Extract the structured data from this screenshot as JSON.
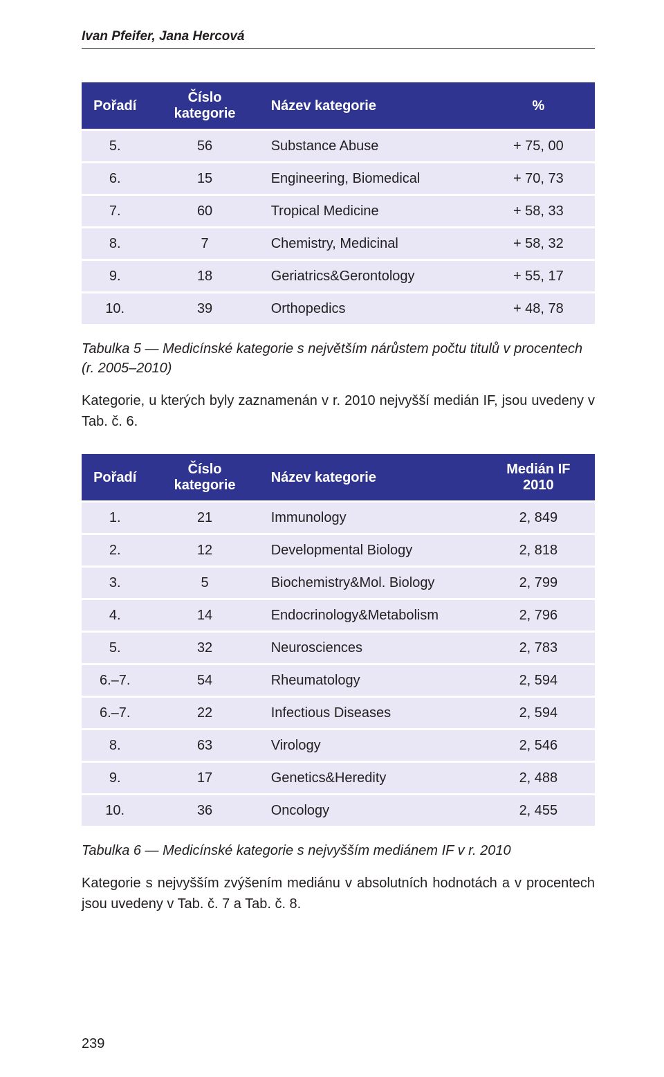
{
  "running_head": "Ivan Pfeifer, Jana Hercová",
  "page_number": "239",
  "table1": {
    "columns": [
      "Pořadí",
      "Číslo kategorie",
      "Název kategorie",
      "%"
    ],
    "rows": [
      [
        "5.",
        "56",
        "Substance Abuse",
        "+ 75, 00"
      ],
      [
        "6.",
        "15",
        "Engineering, Biomedical",
        "+ 70, 73"
      ],
      [
        "7.",
        "60",
        "Tropical Medicine",
        "+ 58, 33"
      ],
      [
        "8.",
        "7",
        "Chemistry, Medicinal",
        "+ 58, 32"
      ],
      [
        "9.",
        "18",
        "Geriatrics&Gerontology",
        "+ 55, 17"
      ],
      [
        "10.",
        "39",
        "Orthopedics",
        "+ 48, 78"
      ]
    ],
    "caption": "Tabulka 5 — Medicínské kategorie s největším nárůstem počtu titulů v procentech (r. 2005–2010)"
  },
  "para1": "Kategorie, u kterých byly zaznamenán v r. 2010 nejvyšší medián IF, jsou uvedeny v Tab. č. 6.",
  "table2": {
    "columns": [
      "Pořadí",
      "Číslo kategorie",
      "Název kategorie",
      "Medián IF 2010"
    ],
    "rows": [
      [
        "1.",
        "21",
        "Immunology",
        "2, 849"
      ],
      [
        "2.",
        "12",
        "Developmental Biology",
        "2, 818"
      ],
      [
        "3.",
        "5",
        "Biochemistry&Mol. Biology",
        "2, 799"
      ],
      [
        "4.",
        "14",
        "Endocrinology&Metabolism",
        "2, 796"
      ],
      [
        "5.",
        "32",
        "Neurosciences",
        "2, 783"
      ],
      [
        "6.–7.",
        "54",
        "Rheumatology",
        "2, 594"
      ],
      [
        "6.–7.",
        "22",
        "Infectious Diseases",
        "2, 594"
      ],
      [
        "8.",
        "63",
        "Virology",
        "2, 546"
      ],
      [
        "9.",
        "17",
        "Genetics&Heredity",
        "2, 488"
      ],
      [
        "10.",
        "36",
        "Oncology",
        "2, 455"
      ]
    ],
    "caption": "Tabulka 6 — Medicínské kategorie s nejvyšším mediánem IF v r. 2010"
  },
  "para2": "Kategorie s nejvyšším zvýšením mediánu v absolutních hodnotách a v procentech jsou uvedeny v Tab. č. 7 a Tab. č. 8."
}
